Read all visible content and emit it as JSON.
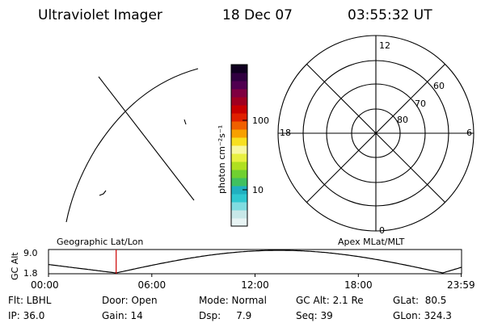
{
  "header": {
    "instrument": "Ultraviolet Imager",
    "date": "18 Dec 07",
    "time": "03:55:32 UT"
  },
  "colorbar": {
    "unit_label": "photon cm⁻²s⁻¹",
    "ticks": [
      {
        "label": "100",
        "value": 100
      },
      {
        "label": "10",
        "value": 10
      }
    ],
    "scale": "log",
    "colors": [
      "#e8f4f4",
      "#c8e8e8",
      "#80dce0",
      "#30c8d0",
      "#20b0c0",
      "#40c060",
      "#70d030",
      "#b0e020",
      "#e8f040",
      "#f8f8a0",
      "#f8e020",
      "#f8a000",
      "#f06000",
      "#e02000",
      "#c80000",
      "#a00020",
      "#800040",
      "#500050",
      "#300040",
      "#100020"
    ]
  },
  "polar_grid": {
    "top_label": "12",
    "bottom_label": "0",
    "left_label": "18",
    "right_label": "6",
    "lat_labels": [
      "60",
      "70",
      "80"
    ]
  },
  "timeline": {
    "left_label": "Geographic Lat/Lon",
    "right_label": "Apex MLat/MLT",
    "y_axis_title": "GC Alt",
    "y_top": "9.0",
    "y_bottom": "1.8",
    "x_ticks": [
      "00:00",
      "06:00",
      "12:00",
      "18:00",
      "23:59"
    ],
    "current_hour": 3.93,
    "marker_color": "#cc0000"
  },
  "info": {
    "filter": "Flt: LBHL",
    "door": "Door: Open",
    "mode": "Mode: Normal",
    "gc_alt": "GC Alt: 2.1 Re",
    "glat": "GLat:  80.5",
    "ip": "IP: 36.0",
    "gain": "Gain: 14",
    "dsp": "Dsp:     7.9",
    "seq": "Seq: 39",
    "glon": "GLon: 324.3"
  }
}
